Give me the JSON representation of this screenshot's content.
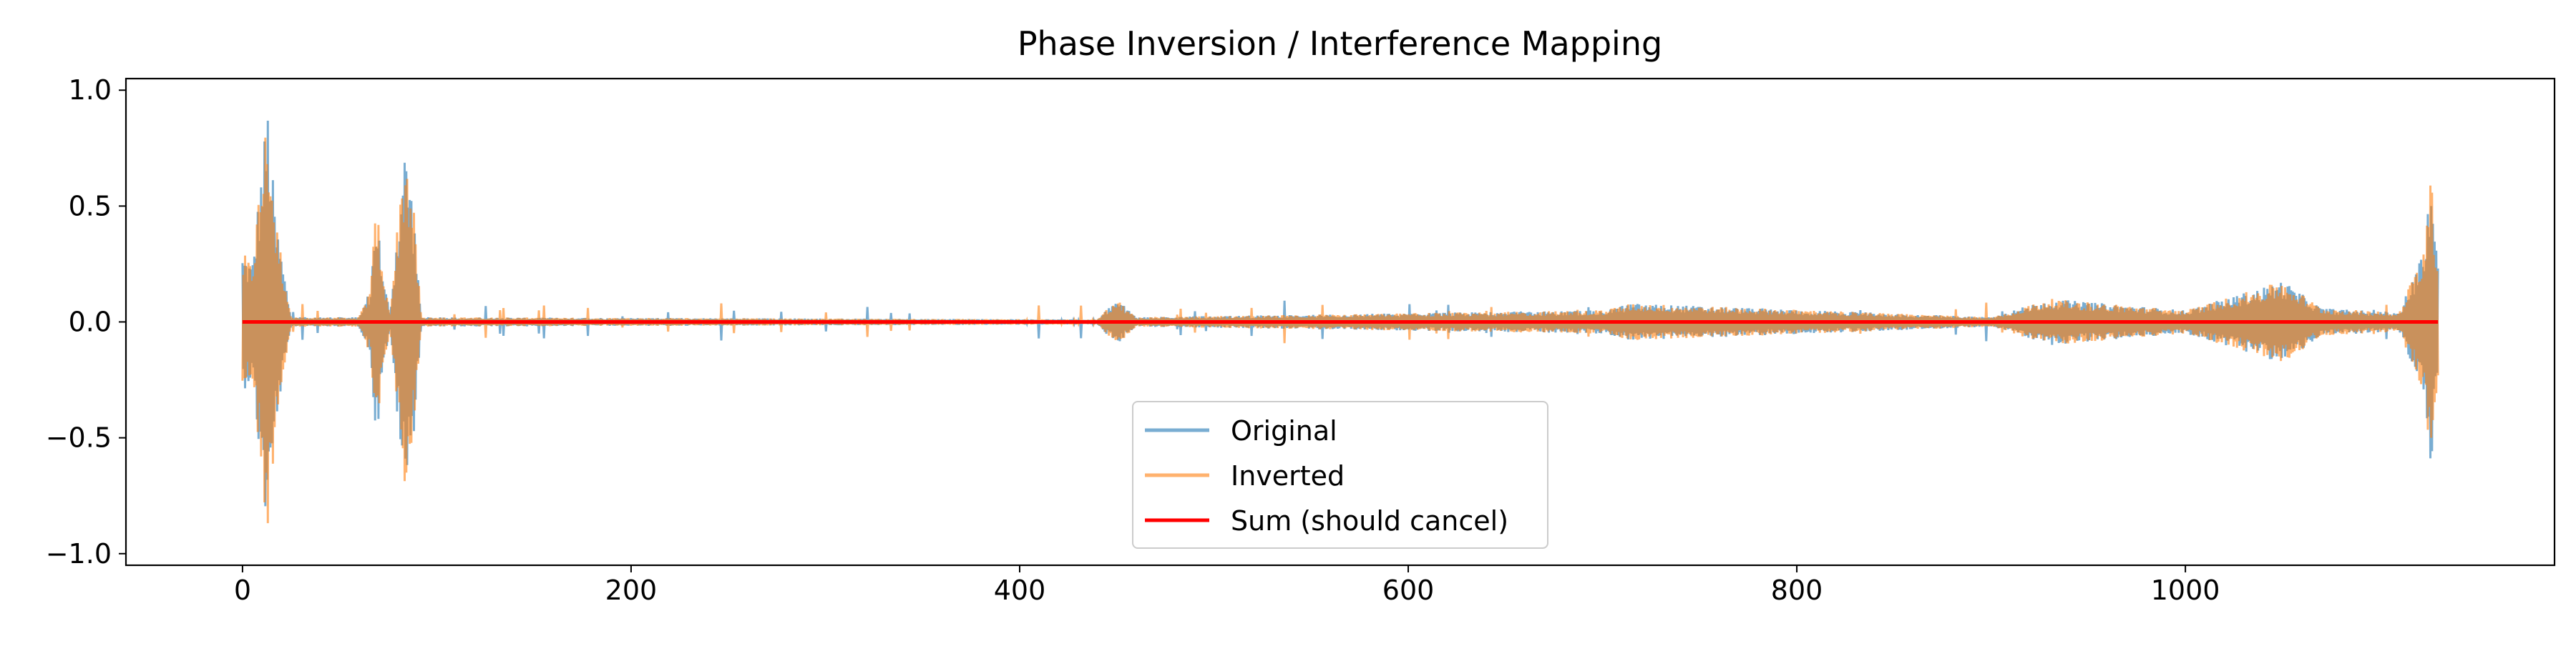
{
  "chart_data": {
    "type": "line",
    "title": "Phase Inversion / Interference Mapping",
    "xlabel": "",
    "ylabel": "",
    "xlim": [
      -60,
      1190
    ],
    "ylim": [
      -1.05,
      1.05
    ],
    "xticks": [
      0,
      200,
      400,
      600,
      800,
      1000
    ],
    "xtick_labels": [
      "0",
      "200",
      "400",
      "600",
      "800",
      "1000"
    ],
    "yticks": [
      1.0,
      0.5,
      0.0,
      -0.5,
      -1.0
    ],
    "ytick_labels": [
      "1.0",
      "0.5",
      "0.0",
      "−0.5",
      "−1.0"
    ],
    "grid": false,
    "legend_position": "lower center",
    "x_range": [
      0,
      1130
    ],
    "series": [
      {
        "name": "Original",
        "color": "#1f77b4",
        "opacity": 0.6,
        "envelope": [
          {
            "x": 0,
            "amp": 0.3
          },
          {
            "x": 5,
            "amp": 0.25
          },
          {
            "x": 10,
            "amp": 0.7
          },
          {
            "x": 13,
            "amp": 0.95
          },
          {
            "x": 17,
            "amp": 0.45
          },
          {
            "x": 20,
            "amp": 0.3
          },
          {
            "x": 25,
            "amp": 0.02
          },
          {
            "x": 60,
            "amp": 0.02
          },
          {
            "x": 66,
            "amp": 0.15
          },
          {
            "x": 69,
            "amp": 0.55
          },
          {
            "x": 72,
            "amp": 0.2
          },
          {
            "x": 76,
            "amp": 0.05
          },
          {
            "x": 80,
            "amp": 0.45
          },
          {
            "x": 84,
            "amp": 0.8
          },
          {
            "x": 88,
            "amp": 0.5
          },
          {
            "x": 92,
            "amp": 0.02
          },
          {
            "x": 440,
            "amp": 0.01
          },
          {
            "x": 450,
            "amp": 0.1
          },
          {
            "x": 460,
            "amp": 0.02
          },
          {
            "x": 700,
            "amp": 0.05
          },
          {
            "x": 715,
            "amp": 0.08
          },
          {
            "x": 900,
            "amp": 0.02
          },
          {
            "x": 930,
            "amp": 0.1
          },
          {
            "x": 1000,
            "amp": 0.05
          },
          {
            "x": 1040,
            "amp": 0.15
          },
          {
            "x": 1050,
            "amp": 0.18
          },
          {
            "x": 1070,
            "amp": 0.06
          },
          {
            "x": 1110,
            "amp": 0.04
          },
          {
            "x": 1122,
            "amp": 0.3
          },
          {
            "x": 1126,
            "amp": 0.65
          },
          {
            "x": 1130,
            "amp": 0.3
          }
        ]
      },
      {
        "name": "Inverted",
        "color": "#ff7f0e",
        "opacity": 0.6,
        "envelope": [
          {
            "x": 0,
            "amp": 0.3
          },
          {
            "x": 5,
            "amp": 0.25
          },
          {
            "x": 10,
            "amp": 0.7
          },
          {
            "x": 13,
            "amp": 0.95
          },
          {
            "x": 17,
            "amp": 0.45
          },
          {
            "x": 20,
            "amp": 0.3
          },
          {
            "x": 25,
            "amp": 0.02
          },
          {
            "x": 60,
            "amp": 0.02
          },
          {
            "x": 66,
            "amp": 0.15
          },
          {
            "x": 69,
            "amp": 0.55
          },
          {
            "x": 72,
            "amp": 0.2
          },
          {
            "x": 76,
            "amp": 0.05
          },
          {
            "x": 80,
            "amp": 0.45
          },
          {
            "x": 84,
            "amp": 0.8
          },
          {
            "x": 88,
            "amp": 0.5
          },
          {
            "x": 92,
            "amp": 0.02
          },
          {
            "x": 440,
            "amp": 0.01
          },
          {
            "x": 450,
            "amp": 0.1
          },
          {
            "x": 460,
            "amp": 0.02
          },
          {
            "x": 700,
            "amp": 0.05
          },
          {
            "x": 715,
            "amp": 0.08
          },
          {
            "x": 900,
            "amp": 0.02
          },
          {
            "x": 930,
            "amp": 0.1
          },
          {
            "x": 1000,
            "amp": 0.05
          },
          {
            "x": 1040,
            "amp": 0.15
          },
          {
            "x": 1050,
            "amp": 0.18
          },
          {
            "x": 1070,
            "amp": 0.06
          },
          {
            "x": 1110,
            "amp": 0.04
          },
          {
            "x": 1122,
            "amp": 0.3
          },
          {
            "x": 1126,
            "amp": 0.65
          },
          {
            "x": 1130,
            "amp": 0.3
          }
        ]
      },
      {
        "name": "Sum (should cancel)",
        "color": "#ff0000",
        "opacity": 1.0,
        "x": [
          0,
          1130
        ],
        "values": [
          0.0,
          0.0
        ]
      }
    ]
  }
}
